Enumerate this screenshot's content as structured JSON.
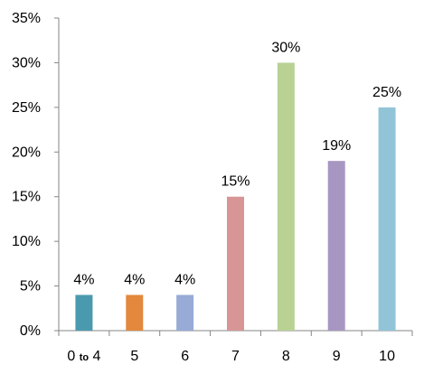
{
  "chart_data": {
    "type": "bar",
    "categories": [
      {
        "main": "0",
        "small": "to",
        "end": "4"
      },
      {
        "main": "5"
      },
      {
        "main": "6"
      },
      {
        "main": "7"
      },
      {
        "main": "8"
      },
      {
        "main": "9"
      },
      {
        "main": "10"
      }
    ],
    "values": [
      4,
      4,
      4,
      15,
      30,
      19,
      25
    ],
    "data_labels": [
      "4%",
      "4%",
      "4%",
      "15%",
      "30%",
      "19%",
      "25%"
    ],
    "colors": [
      "#4A9AAF",
      "#E3883C",
      "#97ABD6",
      "#D79595",
      "#B9D294",
      "#A896C2",
      "#92C4D8"
    ],
    "yticks": [
      "0%",
      "5%",
      "10%",
      "15%",
      "20%",
      "25%",
      "30%",
      "35%"
    ],
    "ylim": [
      0,
      35
    ],
    "title": "",
    "xlabel": "",
    "ylabel": "",
    "grid": false,
    "legend": false
  }
}
